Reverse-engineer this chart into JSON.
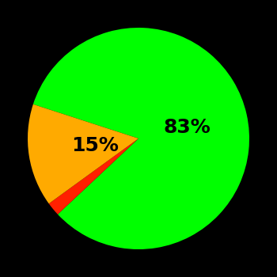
{
  "slices": [
    83,
    2,
    15
  ],
  "colors": [
    "#00ff00",
    "#ff2000",
    "#ffaa00"
  ],
  "background_color": "#000000",
  "startangle": 162,
  "label_fontsize": 18,
  "label_fontweight": "bold",
  "green_label": "83%",
  "yellow_label": "15%",
  "green_r": 0.45,
  "yellow_r": 0.4
}
